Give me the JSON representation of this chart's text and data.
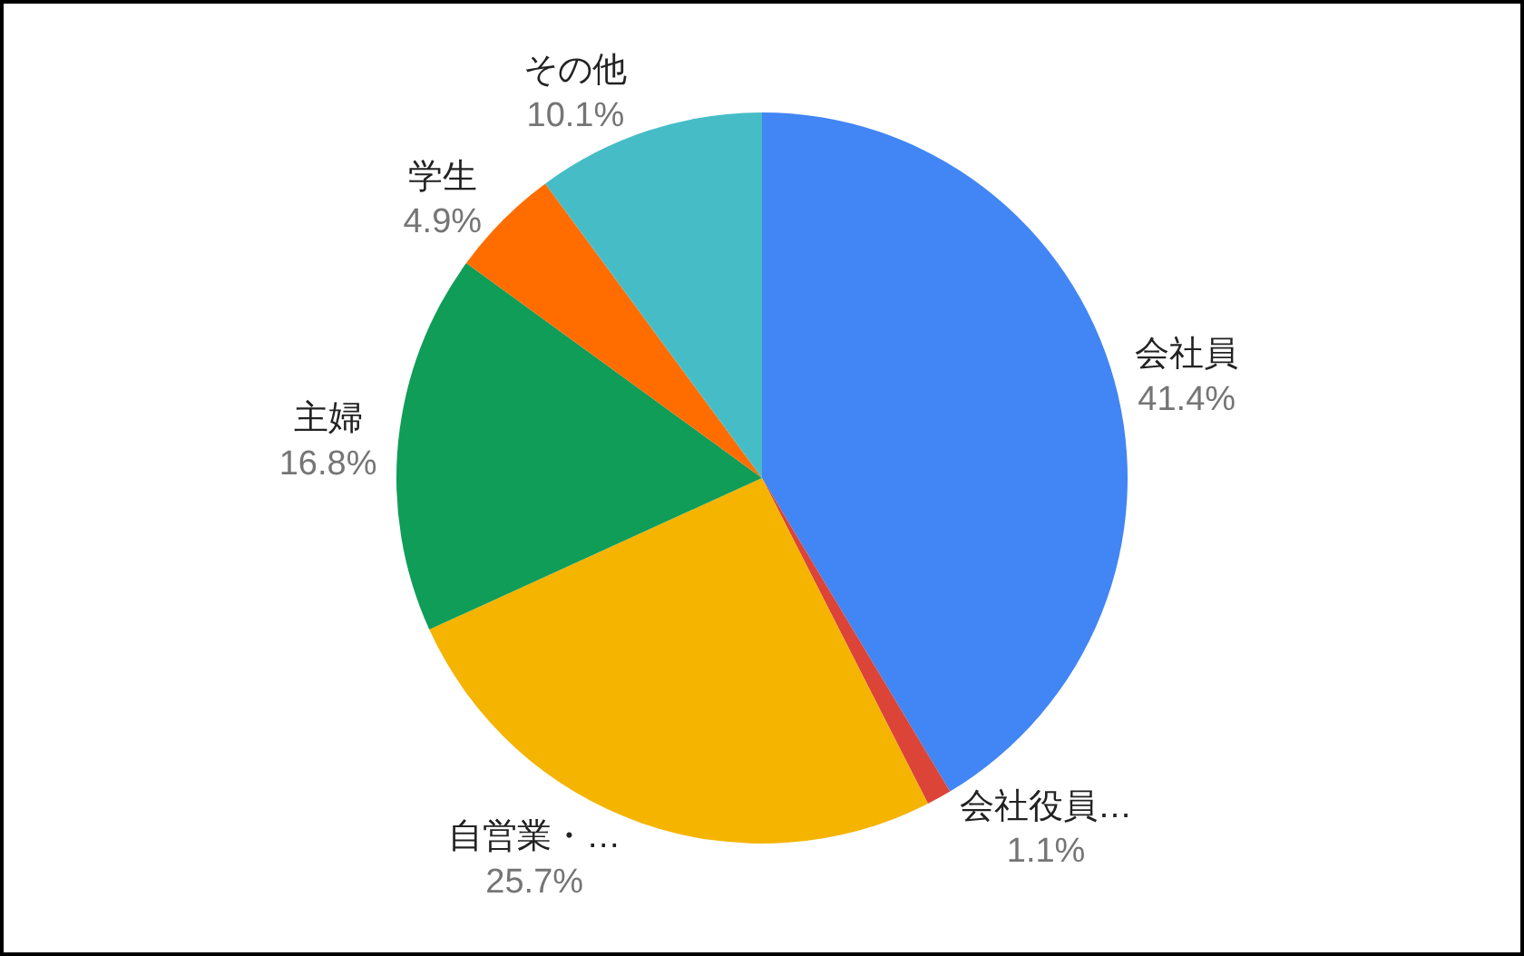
{
  "chart_data": {
    "type": "pie",
    "categories": [
      "会社員",
      "会社役員…",
      "自営業・…",
      "主婦",
      "学生",
      "その他"
    ],
    "values": [
      41.4,
      1.1,
      25.7,
      16.8,
      4.9,
      10.1
    ],
    "value_labels": [
      "41.4%",
      "1.1%",
      "25.7%",
      "16.8%",
      "4.9%",
      "10.1%"
    ],
    "colors": [
      "#4285f4",
      "#db4437",
      "#f4b400",
      "#0f9d58",
      "#ff6d01",
      "#46bdc6"
    ],
    "legend": false
  }
}
